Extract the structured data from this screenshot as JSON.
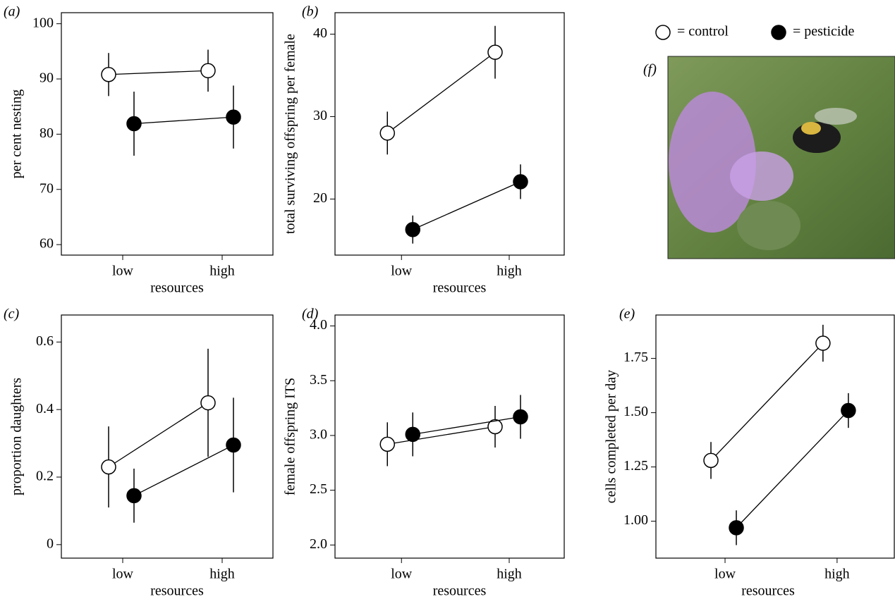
{
  "legend": {
    "items": [
      {
        "label": "= control",
        "fill": "#ffffff"
      },
      {
        "label": "= pesticide",
        "fill": "#000000"
      }
    ]
  },
  "photo": {
    "label": "(f)"
  },
  "chart_data": [
    {
      "type": "line",
      "panel": "(a)",
      "ylabel": "per cent nesting",
      "xlabel": "resources",
      "categories": [
        "low",
        "high"
      ],
      "series": [
        {
          "color": "#000000",
          "fill": "#ffffff",
          "values": [
            90.8,
            91.5
          ],
          "errors": [
            3.9,
            3.8
          ]
        },
        {
          "color": "#000000",
          "fill": "#000000",
          "values": [
            81.9,
            83.1
          ],
          "errors": [
            5.8,
            5.7
          ]
        }
      ],
      "ylim": [
        58.1,
        102
      ],
      "yticks": [
        60,
        70,
        80,
        90,
        100
      ]
    },
    {
      "type": "line",
      "panel": "(b)",
      "ylabel": "total surviving offspring per female",
      "xlabel": "resources",
      "categories": [
        "low",
        "high"
      ],
      "series": [
        {
          "color": "#000000",
          "fill": "#ffffff",
          "values": [
            28.0,
            37.8
          ],
          "errors": [
            2.6,
            3.2
          ]
        },
        {
          "color": "#000000",
          "fill": "#000000",
          "values": [
            16.3,
            22.1
          ],
          "errors": [
            1.7,
            2.1
          ]
        }
      ],
      "ylim": [
        13.2,
        42.6
      ],
      "yticks": [
        20,
        30,
        40
      ]
    },
    {
      "type": "line",
      "panel": "(c)",
      "ylabel": "proportion daughters",
      "xlabel": "resources",
      "categories": [
        "low",
        "high"
      ],
      "series": [
        {
          "color": "#000000",
          "fill": "#ffffff",
          "values": [
            0.23,
            0.42
          ],
          "errors": [
            0.12,
            0.16
          ]
        },
        {
          "color": "#000000",
          "fill": "#000000",
          "values": [
            0.145,
            0.295
          ],
          "errors": [
            0.08,
            0.14
          ]
        }
      ],
      "ylim": [
        -0.04,
        0.68
      ],
      "yticks": [
        0,
        0.2,
        0.4,
        0.6
      ]
    },
    {
      "type": "line",
      "panel": "(d)",
      "ylabel": "female offspring ITS",
      "xlabel": "resources",
      "categories": [
        "low",
        "high"
      ],
      "series": [
        {
          "color": "#000000",
          "fill": "#ffffff",
          "values": [
            2.92,
            3.08
          ],
          "errors": [
            0.2,
            0.19
          ]
        },
        {
          "color": "#000000",
          "fill": "#000000",
          "values": [
            3.01,
            3.17
          ],
          "errors": [
            0.2,
            0.2
          ]
        }
      ],
      "ylim": [
        1.88,
        4.1
      ],
      "yticks": [
        {
          "value": 2,
          "label": "2.0"
        },
        2.5,
        {
          "value": 3,
          "label": "3.0"
        },
        3.5,
        {
          "value": 4,
          "label": "4.0"
        }
      ]
    },
    {
      "type": "line",
      "panel": "(e)",
      "ylabel": "cells completed per day",
      "xlabel": "resources",
      "categories": [
        "low",
        "high"
      ],
      "series": [
        {
          "color": "#000000",
          "fill": "#ffffff",
          "values": [
            1.28,
            1.82
          ],
          "errors": [
            0.085,
            0.085
          ]
        },
        {
          "color": "#000000",
          "fill": "#000000",
          "values": [
            0.97,
            1.51
          ],
          "errors": [
            0.08,
            0.08
          ]
        }
      ],
      "ylim": [
        0.83,
        1.95
      ],
      "yticks": [
        {
          "value": 1,
          "label": "1.00"
        },
        1.25,
        {
          "value": 1.5,
          "label": "1.50"
        },
        1.75
      ]
    }
  ]
}
